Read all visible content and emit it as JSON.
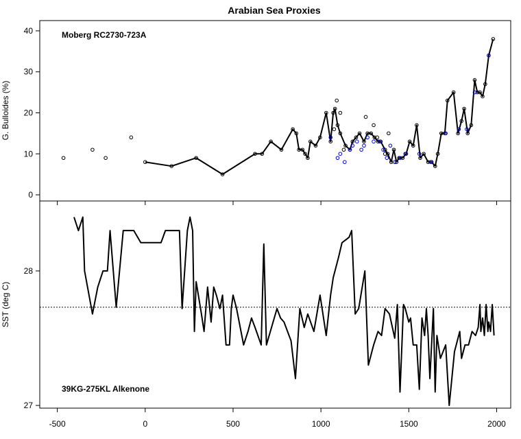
{
  "chart_data": [
    {
      "type": "line",
      "title": "Arabian Sea Proxies",
      "panel_label": "Moberg RC2730-723A",
      "xlabel": "",
      "ylabel": "G. Bulloides (%)",
      "xlim": [
        -600,
        2080
      ],
      "ylim": [
        -1.5,
        42.5
      ],
      "yticks": [
        0,
        10,
        20,
        30,
        40
      ],
      "series": [
        {
          "style": "line-with-open-circle-markers",
          "color": "#000000",
          "x": [
            0,
            150,
            290,
            440,
            625,
            665,
            715,
            775,
            840,
            860,
            875,
            895,
            910,
            925,
            940,
            970,
            995,
            1030,
            1055,
            1070,
            1080,
            1095,
            1110,
            1140,
            1165,
            1180,
            1200,
            1220,
            1245,
            1265,
            1285,
            1305,
            1325,
            1340,
            1365,
            1380,
            1400,
            1415,
            1430,
            1445,
            1465,
            1485,
            1505,
            1525,
            1545,
            1565,
            1585,
            1610,
            1630,
            1650,
            1665,
            1685,
            1705,
            1720,
            1755,
            1780,
            1800,
            1815,
            1835,
            1855,
            1875,
            1890,
            1905,
            1920,
            1935,
            1955,
            1980
          ],
          "y": [
            8,
            7,
            9,
            5,
            10,
            10,
            13,
            11,
            16,
            15,
            11,
            11,
            10,
            9,
            13,
            12,
            14,
            20,
            13,
            20,
            21,
            17,
            15,
            12,
            11,
            13,
            14,
            15,
            13,
            15,
            15,
            14,
            13,
            13,
            11,
            10,
            8,
            11,
            8,
            9,
            9,
            10,
            13,
            12,
            17,
            9,
            10,
            8,
            8,
            7,
            10,
            15,
            15,
            23,
            25,
            15,
            18,
            21,
            15,
            17,
            28,
            25,
            25,
            24,
            27,
            34,
            38
          ]
        },
        {
          "style": "open-circle-markers",
          "color": "#000000",
          "x": [
            -465,
            -300,
            -225,
            -80
          ],
          "y": [
            9,
            11,
            9,
            14
          ]
        },
        {
          "style": "open-circle-markers",
          "color": "#0000cc",
          "x": [
            1055,
            1095,
            1110,
            1135,
            1165,
            1180,
            1205,
            1230,
            1245,
            1265,
            1300,
            1335,
            1355,
            1375,
            1395,
            1420,
            1450,
            1480,
            1560,
            1625,
            1710,
            1785,
            1830,
            1875,
            1955
          ],
          "y": [
            14,
            9,
            10,
            8,
            11,
            12,
            13,
            11,
            12,
            14,
            13,
            13,
            11,
            9,
            12,
            8,
            9,
            10,
            10,
            8,
            15,
            16,
            16,
            25,
            34
          ]
        },
        {
          "style": "open-circle-markers",
          "color": "#000000",
          "x": [
            1075,
            1090,
            1110,
            1130,
            1255,
            1300,
            1320,
            1365,
            1385
          ],
          "y": [
            16,
            23,
            20,
            11,
            19,
            17,
            14,
            10,
            15
          ]
        }
      ]
    },
    {
      "type": "line",
      "panel_label": "39KG-275KL Alkenone",
      "xlabel": "",
      "ylabel": "SST (deg C)",
      "xlim": [
        -600,
        2080
      ],
      "ylim": [
        26.98,
        28.52
      ],
      "yticks": [
        27,
        28
      ],
      "xticks": [
        -500,
        0,
        500,
        1000,
        1500,
        2000
      ],
      "reference_line": 27.73,
      "series": [
        {
          "style": "line",
          "color": "#000000",
          "x": [
            -405,
            -380,
            -355,
            -345,
            -300,
            -270,
            -240,
            -215,
            -200,
            -165,
            -125,
            -65,
            -25,
            90,
            115,
            160,
            195,
            210,
            240,
            255,
            270,
            280,
            290,
            320,
            335,
            355,
            375,
            390,
            405,
            425,
            440,
            460,
            480,
            490,
            500,
            520,
            560,
            585,
            605,
            625,
            660,
            675,
            690,
            750,
            770,
            790,
            810,
            830,
            855,
            880,
            905,
            925,
            960,
            995,
            1030,
            1055,
            1070,
            1100,
            1120,
            1160,
            1175,
            1195,
            1215,
            1250,
            1270,
            1300,
            1325,
            1345,
            1365,
            1390,
            1420,
            1435,
            1450,
            1470,
            1480,
            1500,
            1510,
            1525,
            1545,
            1560,
            1575,
            1590,
            1600,
            1610,
            1620,
            1640,
            1650,
            1660,
            1680,
            1710,
            1730,
            1760,
            1790,
            1800,
            1820,
            1840,
            1860,
            1880,
            1895,
            1905,
            1910,
            1920,
            1930,
            1940,
            1950,
            1955,
            1965,
            1975,
            1985
          ],
          "y": [
            28.4,
            28.3,
            28.4,
            28.0,
            27.68,
            27.88,
            28.0,
            28.0,
            28.3,
            27.73,
            28.3,
            28.3,
            28.21,
            28.21,
            28.3,
            28.3,
            28.3,
            27.72,
            28.3,
            28.4,
            28.3,
            27.55,
            27.92,
            27.68,
            27.55,
            27.88,
            27.62,
            27.88,
            27.82,
            27.72,
            27.82,
            27.45,
            27.45,
            27.72,
            27.82,
            27.72,
            27.45,
            27.55,
            27.65,
            27.58,
            27.45,
            28.2,
            27.45,
            27.72,
            27.65,
            27.62,
            27.55,
            27.48,
            27.2,
            27.72,
            27.58,
            27.68,
            27.55,
            27.82,
            27.52,
            27.82,
            27.95,
            28.1,
            28.21,
            28.25,
            28.3,
            27.68,
            27.72,
            28.0,
            27.3,
            27.45,
            27.55,
            27.52,
            27.72,
            27.68,
            27.5,
            27.75,
            27.1,
            27.75,
            27.72,
            27.62,
            27.65,
            27.45,
            27.45,
            27.12,
            27.65,
            27.52,
            27.72,
            27.52,
            27.2,
            27.72,
            27.1,
            27.52,
            27.35,
            27.45,
            27.0,
            27.4,
            27.55,
            27.35,
            27.45,
            27.45,
            27.55,
            27.52,
            27.58,
            27.75,
            27.55,
            27.65,
            27.52,
            27.75,
            27.55,
            27.62,
            27.55,
            27.75,
            27.52
          ]
        }
      ]
    }
  ]
}
